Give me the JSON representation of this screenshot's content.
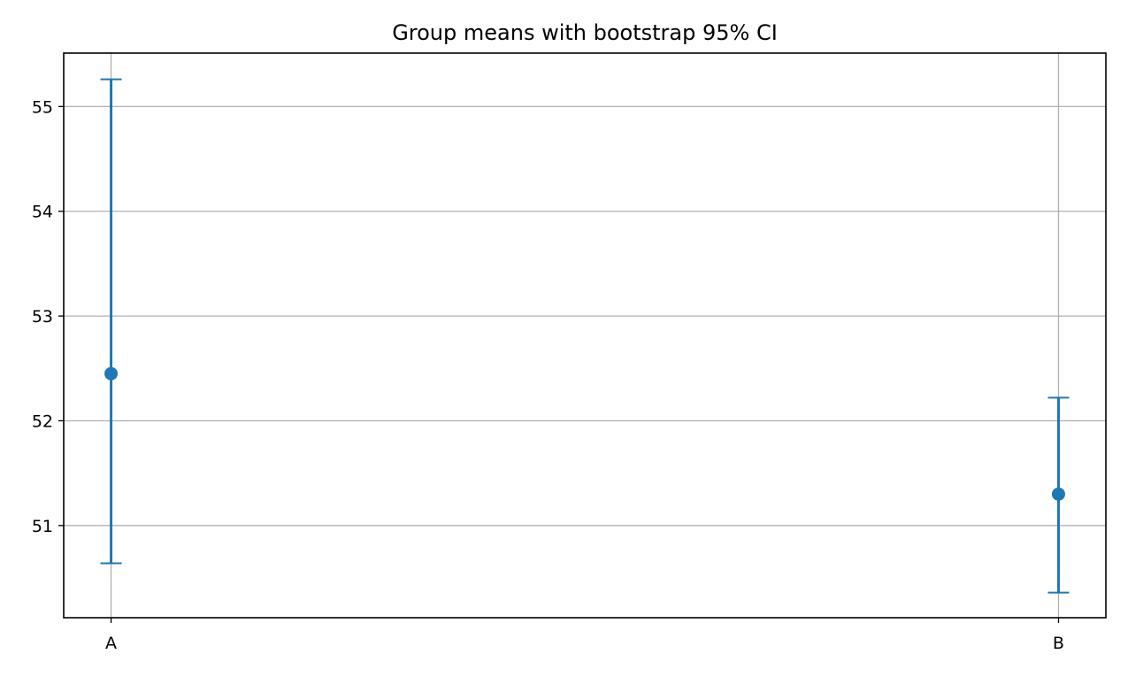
{
  "chart_data": {
    "type": "scatter",
    "title": "Group means with bootstrap 95% CI",
    "xlabel": "",
    "ylabel": "",
    "categories": [
      "A",
      "B"
    ],
    "values": [
      52.45,
      51.3
    ],
    "ci_lower": [
      50.64,
      50.36
    ],
    "ci_upper": [
      55.26,
      52.22
    ],
    "ylim": [
      50.12,
      55.51
    ],
    "yticks": [
      51,
      52,
      53,
      54,
      55
    ],
    "grid": true,
    "legend": "none",
    "colors": {
      "series": "#1f77b4",
      "grid": "#b0b0b0",
      "axes": "#000000",
      "background": "#ffffff"
    }
  }
}
